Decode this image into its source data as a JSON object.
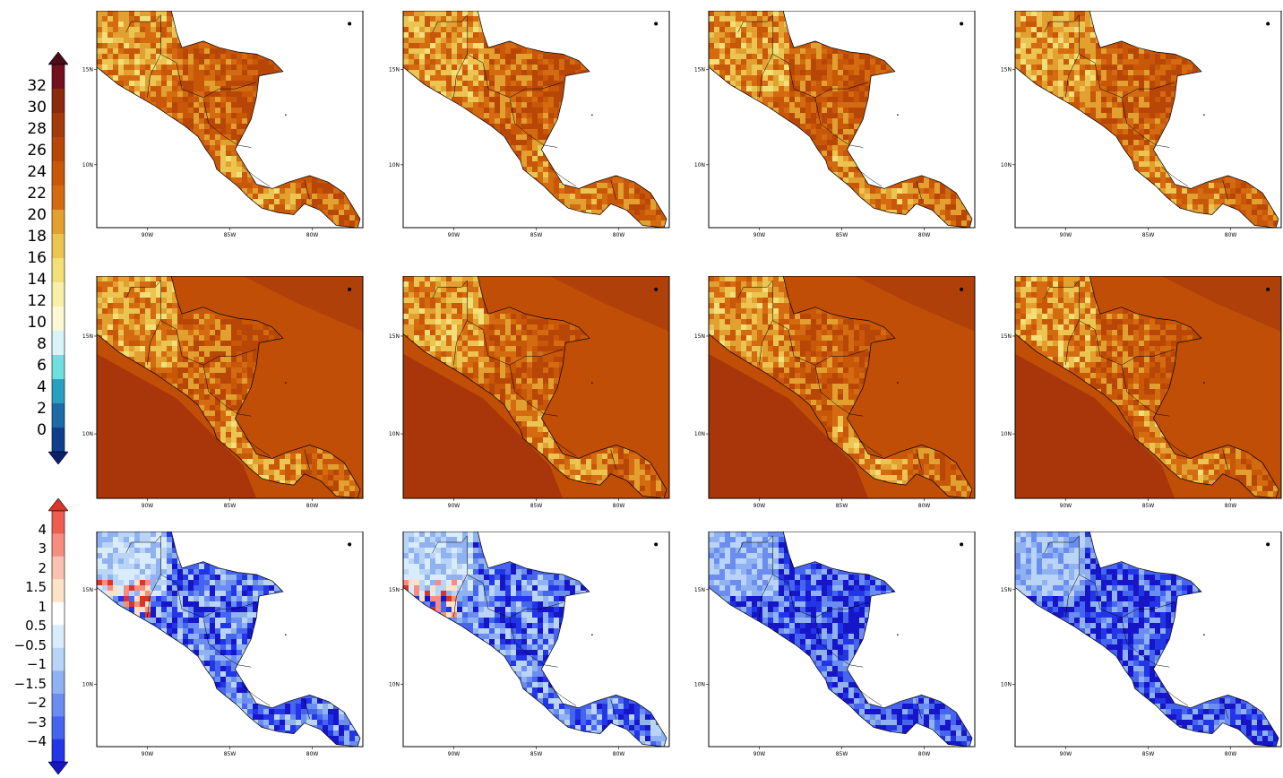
{
  "colorbar_temperature": {
    "labels": [
      "32",
      "30",
      "28",
      "26",
      "24",
      "22",
      "20",
      "18",
      "16",
      "14",
      "12",
      "10",
      "8",
      "6",
      "4",
      "2",
      "0"
    ],
    "colors": [
      "#4a0b1b",
      "#74101e",
      "#8c2a0c",
      "#a33a0a",
      "#b84606",
      "#c85708",
      "#d46b10",
      "#e1a030",
      "#ebc452",
      "#f3df78",
      "#f8f0a8",
      "#fbf9d2",
      "#d8f4f6",
      "#6fdede",
      "#2b9fc0",
      "#1d6aa8",
      "#0f3f8c",
      "#0a1f6e"
    ]
  },
  "colorbar_difference": {
    "labels": [
      "4",
      "3",
      "2",
      "1.5",
      "1",
      "0.5",
      "−0.5",
      "−1",
      "−1.5",
      "−2",
      "−3",
      "−4"
    ],
    "colors": [
      "#d6372a",
      "#ef5d4e",
      "#f58e7f",
      "#f9c1b1",
      "#fde2c8",
      "#ffffff",
      "#d9ecfb",
      "#b9d4f6",
      "#90b2f0",
      "#6c8df0",
      "#4565ee",
      "#2236e8",
      "#1616c8"
    ]
  },
  "axis": {
    "lat_ticks": [
      "15N",
      "10N"
    ],
    "lon_ticks": [
      "90W",
      "85W",
      "80W"
    ]
  },
  "rows": [
    {
      "name": "row-1-mean-temperature",
      "palette": "temperature"
    },
    {
      "name": "row-2-mean-temperature-with-ocean",
      "palette": "temperature-ocean"
    },
    {
      "name": "row-3-difference",
      "palette": "difference"
    }
  ],
  "columns": 4
}
